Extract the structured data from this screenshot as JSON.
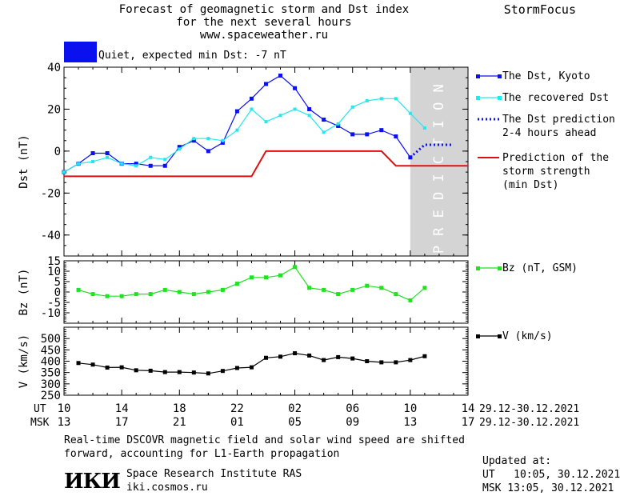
{
  "header": {
    "title_lines": [
      "Forecast of geomagnetic storm and Dst index",
      "for the next several hours",
      "www.spaceweather.ru"
    ],
    "brand": "StormFocus"
  },
  "status": {
    "text": "Quiet, expected min Dst: -7 nT",
    "color": "#0a10ee"
  },
  "colors": {
    "dst": "#0a10ee",
    "recovered": "#22e8f0",
    "prediction": "#0a10ee",
    "strength": "#e01010",
    "bz": "#22e022",
    "v": "#000000",
    "shade": "#d4d4d4"
  },
  "prediction_label": "PREDICTION",
  "chart_data": [
    {
      "type": "line",
      "id": "dst",
      "ylabel": "Dst (nT)",
      "ylim": [
        -50,
        40
      ],
      "yticks": [
        40,
        20,
        0,
        -20,
        -40
      ],
      "prediction_region": [
        10,
        14
      ],
      "series": [
        {
          "name": "The Dst, Kyoto",
          "color": "#0a10ee",
          "style": "solid-square",
          "x": [
            10,
            11,
            12,
            13,
            14,
            15,
            16,
            17,
            18,
            19,
            20,
            21,
            22,
            23,
            24,
            25,
            26,
            27,
            28,
            29,
            30,
            31,
            32,
            33,
            34
          ],
          "y": [
            -10,
            -6,
            -1,
            -1,
            -6,
            -6,
            -7,
            -7,
            2,
            5,
            0,
            4,
            19,
            25,
            32,
            36,
            30,
            20,
            15,
            12,
            8,
            8,
            10,
            7,
            -3
          ]
        },
        {
          "name": "The recovered Dst",
          "color": "#22e8f0",
          "style": "solid-square",
          "x": [
            10,
            11,
            12,
            13,
            14,
            15,
            16,
            17,
            18,
            19,
            20,
            21,
            22,
            23,
            24,
            25,
            26,
            27,
            28,
            29,
            30,
            31,
            32,
            33,
            34,
            35
          ],
          "y": [
            -10,
            -6,
            -5,
            -3,
            -6,
            -7,
            -3,
            -4,
            1,
            6,
            6,
            5,
            10,
            20,
            14,
            17,
            20,
            17,
            9,
            13,
            21,
            24,
            25,
            25,
            18,
            11
          ]
        },
        {
          "name": "The Dst prediction\n2-4 hours ahead",
          "color": "#0a10ee",
          "style": "dotted",
          "x": [
            34,
            35,
            36,
            37
          ],
          "y": [
            -3,
            3,
            3,
            3
          ]
        },
        {
          "name": "Prediction of the\nstorm strength\n(min Dst)",
          "color": "#e01010",
          "style": "step",
          "x": [
            10,
            23,
            24,
            32,
            33,
            38
          ],
          "y": [
            -12,
            -12,
            0,
            0,
            -7,
            -7
          ]
        }
      ]
    },
    {
      "type": "line",
      "id": "bz",
      "ylabel": "Bz (nT)",
      "ylim": [
        -15,
        15
      ],
      "yticks": [
        15,
        10,
        5,
        0,
        -5,
        -10
      ],
      "series": [
        {
          "name": "Bz (nT, GSM)",
          "color": "#22e022",
          "x": [
            11,
            12,
            13,
            14,
            15,
            16,
            17,
            18,
            19,
            20,
            21,
            22,
            23,
            24,
            25,
            26,
            27,
            28,
            29,
            30,
            31,
            32,
            33,
            34,
            35
          ],
          "y": [
            1,
            -1,
            -2,
            -2,
            -1,
            -1,
            1,
            0,
            -1,
            0,
            1,
            4,
            7,
            7,
            8,
            12,
            2,
            1,
            -1,
            1,
            3,
            2,
            -1,
            -4,
            2
          ]
        }
      ]
    },
    {
      "type": "line",
      "id": "v",
      "ylabel": "V (km/s)",
      "ylim": [
        250,
        550
      ],
      "yticks": [
        500,
        450,
        400,
        350,
        300,
        250
      ],
      "series": [
        {
          "name": "V (km/s)",
          "color": "#000000",
          "x": [
            11,
            12,
            13,
            14,
            15,
            16,
            17,
            18,
            19,
            20,
            21,
            22,
            23,
            24,
            25,
            26,
            27,
            28,
            29,
            30,
            31,
            32,
            33,
            34,
            35
          ],
          "y": [
            392,
            385,
            372,
            373,
            360,
            358,
            352,
            352,
            350,
            346,
            357,
            370,
            373,
            415,
            420,
            435,
            425,
            405,
            418,
            412,
            400,
            395,
            395,
            405,
            422
          ]
        }
      ]
    }
  ],
  "x_axis": {
    "row_ut_label": "UT",
    "row_msk_label": "MSK",
    "ut_ticks": [
      "10",
      "14",
      "18",
      "22",
      "02",
      "06",
      "10",
      "14"
    ],
    "msk_ticks": [
      "13",
      "17",
      "21",
      "01",
      "05",
      "09",
      "13",
      "17"
    ],
    "date_range_ut": "29.12-30.12.2021",
    "date_range_msk": "29.12-30.12.2021"
  },
  "footer": {
    "note_lines": [
      "Real-time DSCOVR magnetic field and solar wind speed are shifted",
      "forward, accounting for L1-Earth propagation"
    ],
    "logo": "ИКИ",
    "institute": "Space Research Institute RAS",
    "site": "iki.cosmos.ru",
    "updated_label": "Updated at:",
    "updated_ut": "UT   10:05, 30.12.2021",
    "updated_msk": "MSK 13:05, 30.12.2021"
  }
}
